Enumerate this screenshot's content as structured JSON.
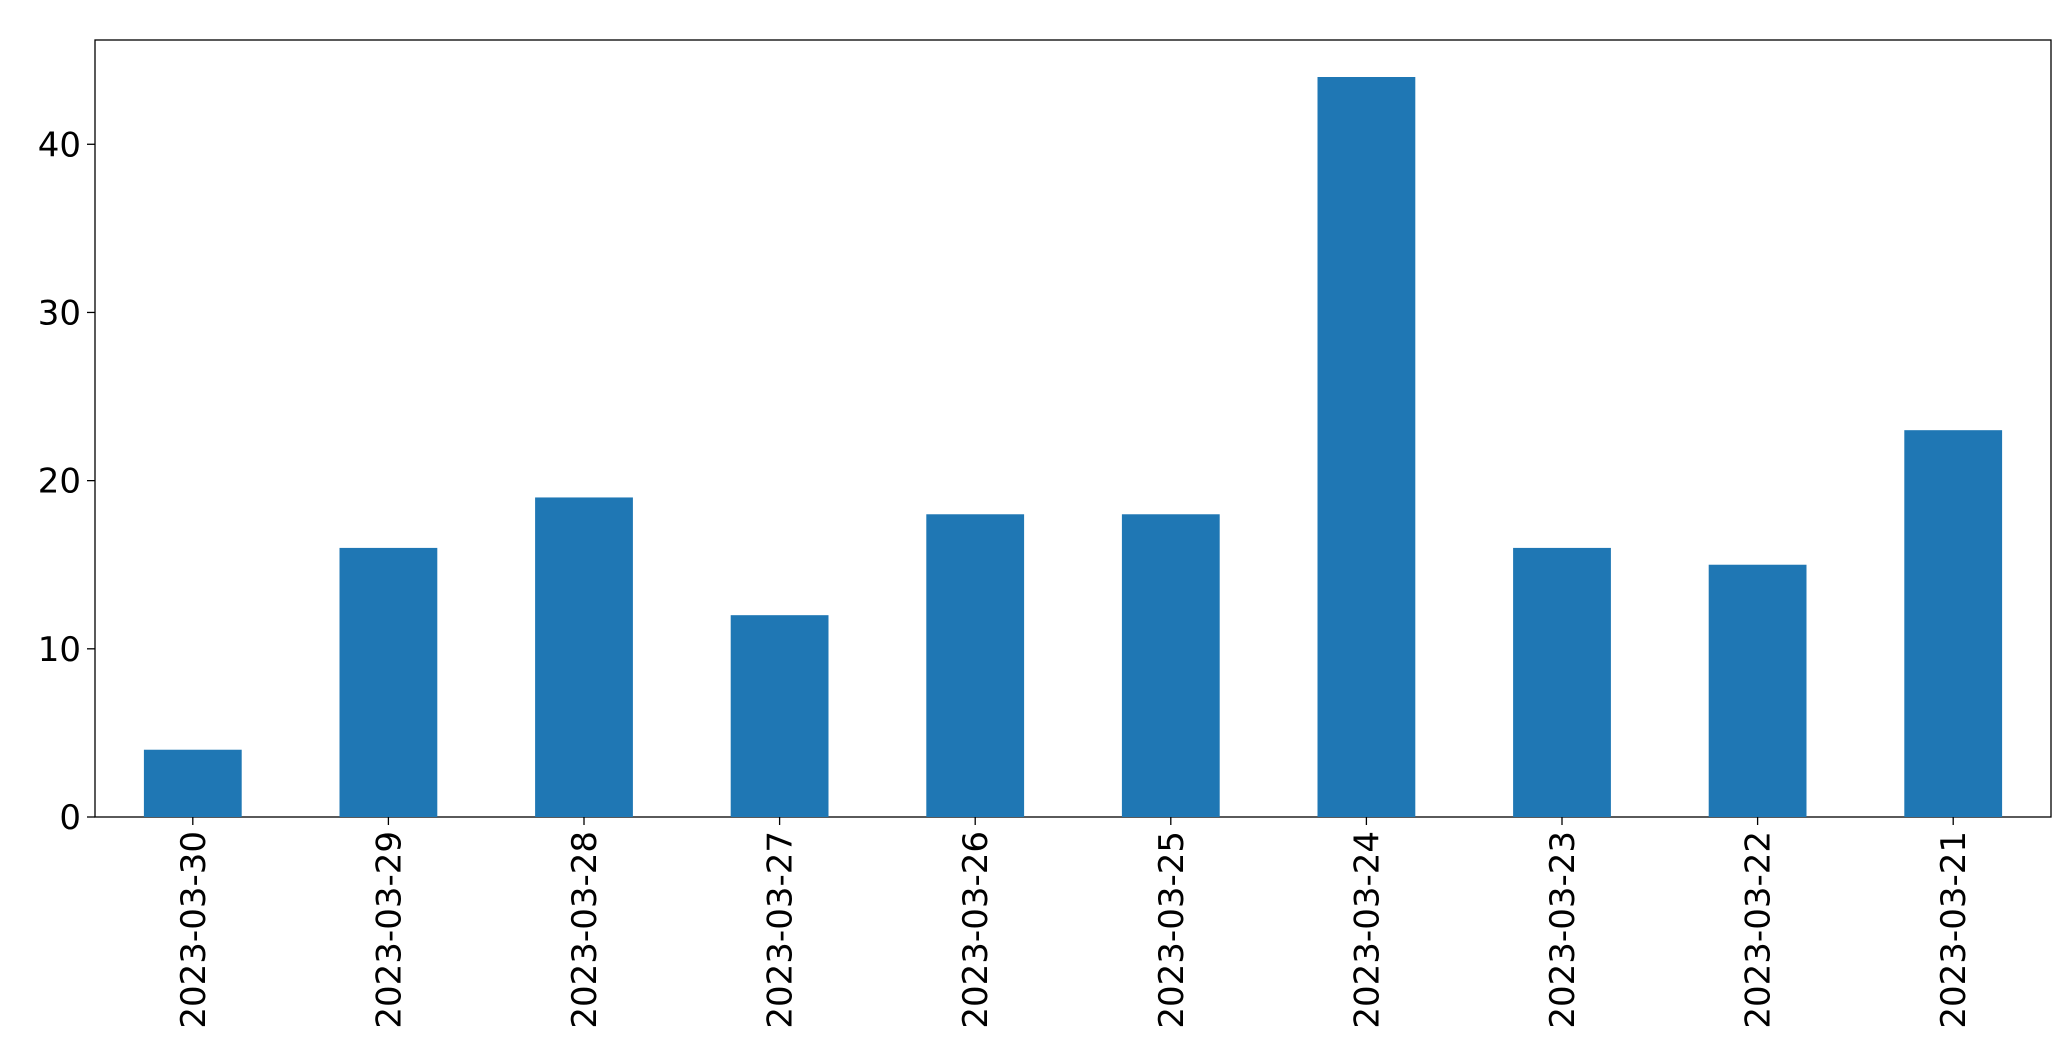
{
  "chart_data": {
    "type": "bar",
    "categories": [
      "2023-03-30",
      "2023-03-29",
      "2023-03-28",
      "2023-03-27",
      "2023-03-26",
      "2023-03-25",
      "2023-03-24",
      "2023-03-23",
      "2023-03-22",
      "2023-03-21"
    ],
    "values": [
      4,
      16,
      19,
      12,
      18,
      18,
      44,
      16,
      15,
      23
    ],
    "color": "#1f77b4",
    "ylim": [
      0,
      46.2
    ],
    "yticks": [
      0,
      10,
      20,
      30,
      40
    ],
    "grid": false
  }
}
